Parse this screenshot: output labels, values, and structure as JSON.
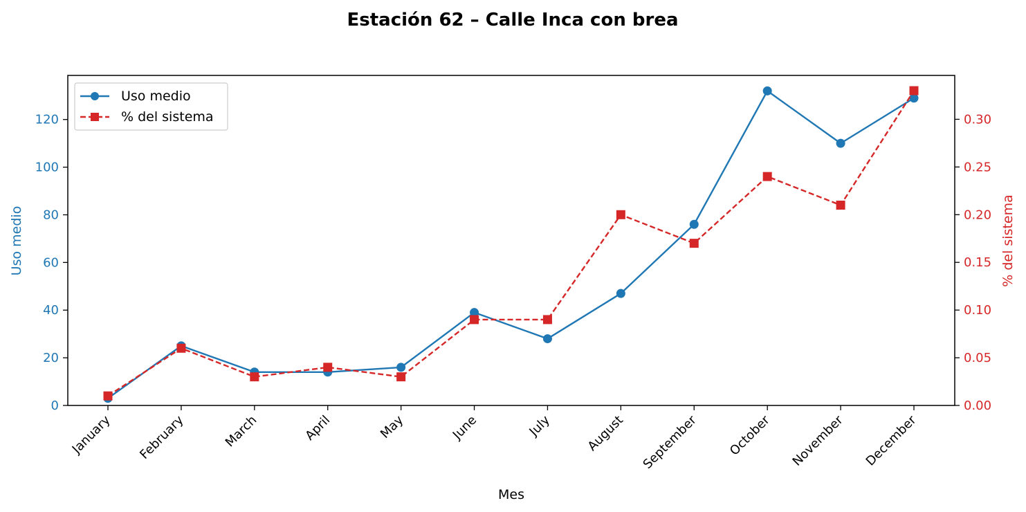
{
  "colors": {
    "left_axis": "#1f77b4",
    "right_axis": "#d62728",
    "text": "#000000"
  },
  "chart_data": {
    "type": "line",
    "title": "Estación 62 – Calle Inca con brea",
    "xlabel": "Mes",
    "ylabel_left": "Uso medio",
    "ylabel_right": "% del sistema",
    "categories": [
      "January",
      "February",
      "March",
      "April",
      "May",
      "June",
      "July",
      "August",
      "September",
      "October",
      "November",
      "December"
    ],
    "ylim_left": [
      0,
      138.5
    ],
    "ylim_right": [
      0,
      0.346
    ],
    "yticks_left": [
      "0",
      "20",
      "40",
      "60",
      "80",
      "100",
      "120"
    ],
    "yticks_right": [
      "0.00",
      "0.05",
      "0.10",
      "0.15",
      "0.20",
      "0.25",
      "0.30"
    ],
    "legend_position": "upper-left",
    "grid": false,
    "series": [
      {
        "name": "Uso medio",
        "axis": "left",
        "style": "solid",
        "marker": "circle",
        "color": "#1f77b4",
        "values": [
          3,
          25,
          14,
          14,
          16,
          39,
          28,
          47,
          76,
          132,
          110,
          129
        ]
      },
      {
        "name": "% del sistema",
        "axis": "right",
        "style": "dashed",
        "marker": "square",
        "color": "#d62728",
        "values": [
          0.01,
          0.06,
          0.03,
          0.04,
          0.03,
          0.09,
          0.09,
          0.2,
          0.17,
          0.24,
          0.21,
          0.33
        ]
      }
    ]
  }
}
